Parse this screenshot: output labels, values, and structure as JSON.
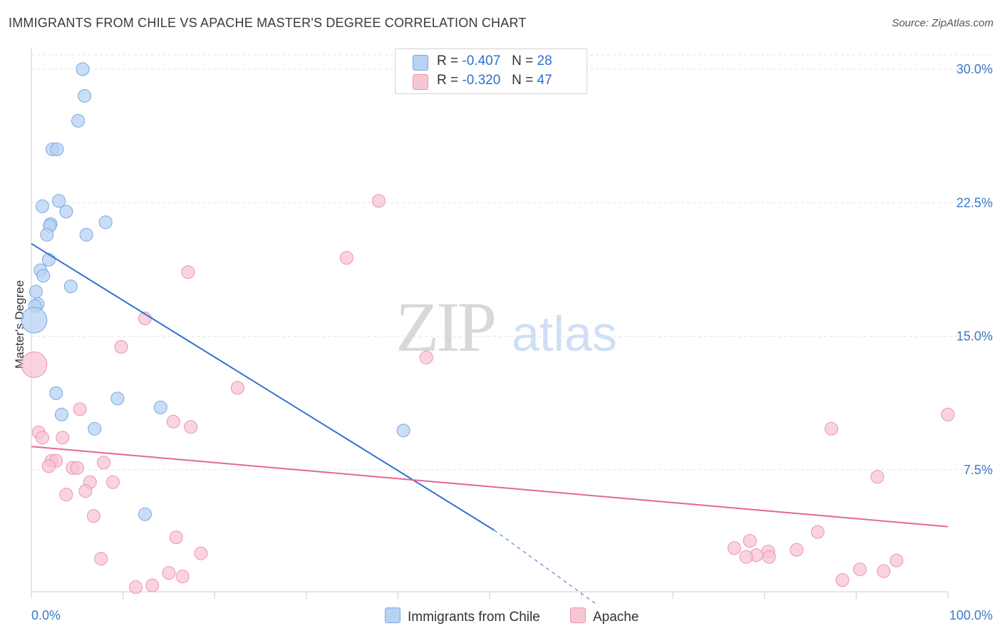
{
  "header": {
    "title": "IMMIGRANTS FROM CHILE VS APACHE MASTER'S DEGREE CORRELATION CHART",
    "source": "Source: ZipAtlas.com"
  },
  "watermark": {
    "zip": "ZIP",
    "atlas": "atlas"
  },
  "legend": {
    "rows": [
      {
        "r_label": "R =",
        "r_value": "-0.407",
        "n_label": "N =",
        "n_value": "28"
      },
      {
        "r_label": "R =",
        "r_value": "-0.320",
        "n_label": "N =",
        "n_value": "47"
      }
    ]
  },
  "bottom_legend": {
    "series1": "Immigrants from Chile",
    "series2": "Apache"
  },
  "colors": {
    "blue_fill": "#b8d2f3",
    "blue_stroke": "#7aa8e0",
    "blue_line": "#2f72d1",
    "pink_fill": "#f7c6d3",
    "pink_stroke": "#ec93ac",
    "pink_line": "#e4688f",
    "grid": "#e3e3e3",
    "tick_label": "#3a78c8"
  },
  "chart_data": {
    "type": "scatter",
    "title": "IMMIGRANTS FROM CHILE VS APACHE MASTER'S DEGREE CORRELATION CHART",
    "xlabel": "",
    "ylabel": "Master's Degree",
    "xlim": [
      0,
      100
    ],
    "ylim": [
      0,
      31
    ],
    "y_ticks": [
      7.5,
      15.0,
      22.5,
      30.0
    ],
    "y_tick_labels": [
      "7.5%",
      "15.0%",
      "22.5%",
      "30.0%"
    ],
    "x_tick_labels": [
      "0.0%",
      "100.0%"
    ],
    "series": [
      {
        "name": "Immigrants from Chile",
        "color": "#b8d2f3",
        "points": [
          [
            5.6,
            30.0
          ],
          [
            5.8,
            28.5
          ],
          [
            5.1,
            27.1
          ],
          [
            2.3,
            25.5
          ],
          [
            2.8,
            25.5
          ],
          [
            1.2,
            22.3
          ],
          [
            3.0,
            22.6
          ],
          [
            3.8,
            22.0
          ],
          [
            8.1,
            21.4
          ],
          [
            2.1,
            21.3
          ],
          [
            2.0,
            21.2
          ],
          [
            1.7,
            20.7
          ],
          [
            6.0,
            20.7
          ],
          [
            1.9,
            19.3
          ],
          [
            1.0,
            18.7
          ],
          [
            1.3,
            18.4
          ],
          [
            4.3,
            17.8
          ],
          [
            0.5,
            17.5
          ],
          [
            0.7,
            16.8
          ],
          [
            0.4,
            16.7
          ],
          [
            0.3,
            15.9
          ],
          [
            2.7,
            11.8
          ],
          [
            3.3,
            10.6
          ],
          [
            9.4,
            11.5
          ],
          [
            14.1,
            11.0
          ],
          [
            6.9,
            9.8
          ],
          [
            40.6,
            9.7
          ],
          [
            12.4,
            5.0
          ]
        ],
        "sizes": [
          9,
          9,
          9,
          9,
          9,
          9,
          9,
          9,
          9,
          9,
          9,
          9,
          9,
          9,
          9,
          9,
          9,
          9,
          9,
          9,
          18,
          9,
          9,
          9,
          9,
          9,
          9,
          9
        ],
        "trend": {
          "x": [
            0,
            50.5
          ],
          "y": [
            20.2,
            4.1
          ],
          "dashed_to": {
            "x": [
              50.5,
              61.5
            ],
            "y": [
              4.1,
              0
            ]
          }
        }
      },
      {
        "name": "Apache",
        "color": "#f7c6d3",
        "points": [
          [
            0.3,
            13.4
          ],
          [
            37.9,
            22.6
          ],
          [
            34.4,
            19.4
          ],
          [
            17.1,
            18.6
          ],
          [
            12.4,
            16.0
          ],
          [
            9.8,
            14.4
          ],
          [
            43.1,
            13.8
          ],
          [
            22.5,
            12.1
          ],
          [
            5.3,
            10.9
          ],
          [
            15.5,
            10.2
          ],
          [
            17.4,
            9.9
          ],
          [
            0.8,
            9.6
          ],
          [
            1.2,
            9.3
          ],
          [
            3.4,
            9.3
          ],
          [
            2.2,
            8.0
          ],
          [
            2.7,
            8.0
          ],
          [
            7.9,
            7.9
          ],
          [
            1.9,
            7.7
          ],
          [
            4.5,
            7.6
          ],
          [
            5.0,
            7.6
          ],
          [
            6.4,
            6.8
          ],
          [
            8.9,
            6.8
          ],
          [
            5.9,
            6.3
          ],
          [
            3.8,
            6.1
          ],
          [
            6.8,
            4.9
          ],
          [
            15.8,
            3.7
          ],
          [
            18.5,
            2.8
          ],
          [
            7.6,
            2.5
          ],
          [
            15.0,
            1.7
          ],
          [
            16.5,
            1.5
          ],
          [
            11.4,
            0.9
          ],
          [
            13.2,
            1.0
          ],
          [
            100.0,
            10.6
          ],
          [
            87.3,
            9.8
          ],
          [
            92.3,
            7.1
          ],
          [
            85.8,
            4.0
          ],
          [
            78.4,
            3.5
          ],
          [
            76.7,
            3.1
          ],
          [
            83.5,
            3.0
          ],
          [
            80.4,
            2.9
          ],
          [
            79.1,
            2.7
          ],
          [
            78.0,
            2.6
          ],
          [
            80.5,
            2.6
          ],
          [
            94.4,
            2.4
          ],
          [
            90.4,
            1.9
          ],
          [
            93.0,
            1.8
          ],
          [
            88.5,
            1.3
          ]
        ],
        "sizes": [
          18,
          9,
          9,
          9,
          9,
          9,
          9,
          9,
          9,
          9,
          9,
          9,
          9,
          9,
          9,
          9,
          9,
          9,
          9,
          9,
          9,
          9,
          9,
          9,
          9,
          9,
          9,
          9,
          9,
          9,
          9,
          9,
          9,
          9,
          9,
          9,
          9,
          9,
          9,
          9,
          9,
          9,
          9,
          9,
          9,
          9,
          9
        ],
        "trend": {
          "x": [
            0,
            100
          ],
          "y": [
            8.8,
            4.3
          ]
        }
      }
    ]
  }
}
